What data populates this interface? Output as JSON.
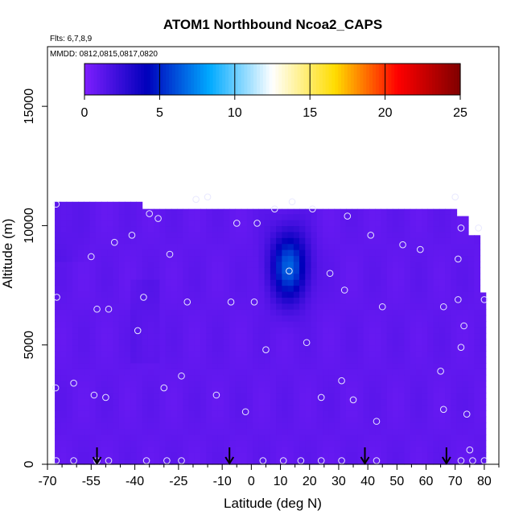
{
  "chart_data": {
    "type": "heatmap",
    "title": "ATOM1 Northbound Ncoa2_CAPS",
    "subtitle_flights": "Flts: 6,7,8,9",
    "subtitle_dates": "MMDD: 0812,0815,0817,0820",
    "xlabel": "Latitude (deg N)",
    "ylabel": "Altitude (m)",
    "xlim": [
      -70,
      85
    ],
    "ylim": [
      0,
      17500
    ],
    "x_ticks": [
      -70,
      -55,
      -40,
      -25,
      -10,
      0,
      10,
      20,
      30,
      40,
      50,
      60,
      70,
      80
    ],
    "x_tick_labels": [
      "-70",
      "-55",
      "-40",
      "-25",
      "-10",
      "0",
      "10",
      "20",
      "30",
      "40",
      "50",
      "60",
      "70",
      "80"
    ],
    "x_minor_ticks": [
      -65,
      -60,
      -50,
      -45,
      -35,
      -30,
      -20,
      -15,
      -5,
      5,
      15,
      25,
      35,
      45,
      55,
      65,
      75,
      85
    ],
    "y_ticks": [
      0,
      5000,
      10000,
      15000
    ],
    "y_tick_labels": [
      "0",
      "5000",
      "10000",
      "15000"
    ],
    "colorbar": {
      "range": [
        0,
        25
      ],
      "ticks": [
        0,
        5,
        10,
        15,
        20,
        25
      ],
      "tick_labels": [
        "0",
        "5",
        "10",
        "15",
        "20",
        "25"
      ],
      "colors": [
        "#7f1fff",
        "#0000bb",
        "#00aaff",
        "#ffffff",
        "#ffdd00",
        "#ff0000",
        "#7f0000"
      ]
    },
    "field": {
      "background_value": 1,
      "domain": {
        "lat_min": -67.5,
        "lat_max": 80.5,
        "alt_min": 0,
        "alt_max": 11000
      },
      "blob_center": {
        "lat": 13,
        "alt": 8300,
        "peak": 6.5
      }
    },
    "sample_points": [
      [
        -67,
        10900
      ],
      [
        -66.8,
        7000
      ],
      [
        -67.2,
        3200
      ],
      [
        -67,
        150
      ],
      [
        -61,
        3400
      ],
      [
        -61,
        150
      ],
      [
        -55,
        8700
      ],
      [
        -54,
        2900
      ],
      [
        -53,
        6500
      ],
      [
        -53,
        150
      ],
      [
        -50,
        2800
      ],
      [
        -49,
        6500
      ],
      [
        -49,
        150
      ],
      [
        -47,
        9300
      ],
      [
        -41,
        9600
      ],
      [
        -39,
        5600
      ],
      [
        -37,
        7000
      ],
      [
        -36,
        150
      ],
      [
        -35,
        10500
      ],
      [
        -32,
        10300
      ],
      [
        -30,
        3200
      ],
      [
        -29,
        150
      ],
      [
        -28,
        8800
      ],
      [
        -24,
        3700
      ],
      [
        -24,
        150
      ],
      [
        -22,
        6800
      ],
      [
        -19,
        11100
      ],
      [
        -15,
        11200
      ],
      [
        -12,
        2900
      ],
      [
        -7,
        6800
      ],
      [
        -5,
        10100
      ],
      [
        -2,
        2200
      ],
      [
        1,
        6800
      ],
      [
        2,
        10100
      ],
      [
        4,
        150
      ],
      [
        5,
        4800
      ],
      [
        8,
        10700
      ],
      [
        11,
        150
      ],
      [
        13,
        8100
      ],
      [
        14,
        11000
      ],
      [
        17,
        150
      ],
      [
        19,
        5100
      ],
      [
        21,
        10700
      ],
      [
        24,
        2800
      ],
      [
        24,
        150
      ],
      [
        27,
        8000
      ],
      [
        31,
        3500
      ],
      [
        32,
        7300
      ],
      [
        31,
        150
      ],
      [
        33,
        10400
      ],
      [
        35,
        2700
      ],
      [
        41,
        9600
      ],
      [
        43,
        150
      ],
      [
        43,
        1800
      ],
      [
        45,
        6600
      ],
      [
        52,
        9200
      ],
      [
        58,
        9000
      ],
      [
        65,
        3900
      ],
      [
        66,
        2300
      ],
      [
        66,
        6600
      ],
      [
        70,
        11200
      ],
      [
        71,
        8600
      ],
      [
        71,
        6900
      ],
      [
        72,
        4900
      ],
      [
        72,
        150
      ],
      [
        72,
        9900
      ],
      [
        73,
        5800
      ],
      [
        74,
        2100
      ],
      [
        75,
        600
      ],
      [
        76,
        150
      ],
      [
        78,
        9900
      ],
      [
        80,
        6900
      ],
      [
        80,
        150
      ]
    ],
    "flight_markers_lat": [
      -53,
      -7.5,
      39,
      67
    ]
  }
}
